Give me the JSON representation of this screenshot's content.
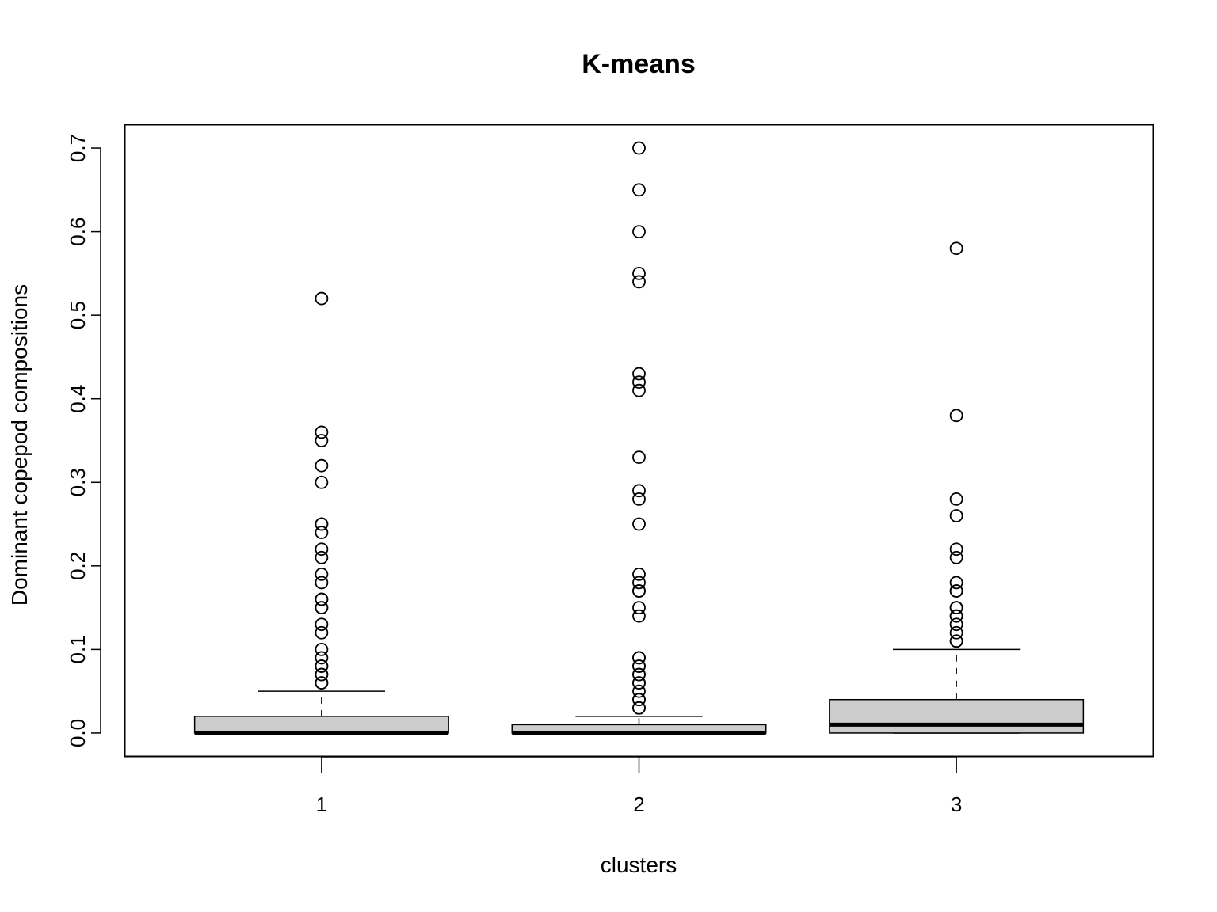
{
  "chart_data": {
    "type": "boxplot",
    "title": "K-means",
    "xlabel": "clusters",
    "ylabel": "Dominant copepod compositions",
    "categories": [
      "1",
      "2",
      "3"
    ],
    "ylim": [
      -0.028,
      0.728
    ],
    "yticks": [
      0.0,
      0.1,
      0.2,
      0.3,
      0.4,
      0.5,
      0.6,
      0.7
    ],
    "ytick_labels": [
      "0.0",
      "0.1",
      "0.2",
      "0.3",
      "0.4",
      "0.5",
      "0.6",
      "0.7"
    ],
    "box_fill": "#cccccc",
    "grid": false,
    "boxes": [
      {
        "category": "1",
        "whisker_low": 0.0,
        "q1": 0.0,
        "median": 0.0,
        "q3": 0.02,
        "whisker_high": 0.05,
        "outliers": [
          0.06,
          0.06,
          0.07,
          0.07,
          0.08,
          0.08,
          0.09,
          0.1,
          0.12,
          0.13,
          0.15,
          0.15,
          0.16,
          0.16,
          0.18,
          0.19,
          0.21,
          0.22,
          0.24,
          0.25,
          0.25,
          0.3,
          0.32,
          0.35,
          0.36,
          0.52
        ]
      },
      {
        "category": "2",
        "whisker_low": 0.0,
        "q1": 0.0,
        "median": 0.0,
        "q3": 0.01,
        "whisker_high": 0.02,
        "outliers": [
          0.03,
          0.03,
          0.04,
          0.04,
          0.05,
          0.06,
          0.06,
          0.07,
          0.07,
          0.08,
          0.08,
          0.09,
          0.09,
          0.14,
          0.15,
          0.17,
          0.17,
          0.18,
          0.19,
          0.25,
          0.28,
          0.29,
          0.33,
          0.41,
          0.42,
          0.43,
          0.54,
          0.55,
          0.6,
          0.65,
          0.7
        ]
      },
      {
        "category": "3",
        "whisker_low": 0.0,
        "q1": 0.0,
        "median": 0.01,
        "q3": 0.04,
        "whisker_high": 0.1,
        "outliers": [
          0.11,
          0.11,
          0.12,
          0.13,
          0.14,
          0.14,
          0.15,
          0.15,
          0.17,
          0.17,
          0.18,
          0.21,
          0.22,
          0.26,
          0.28,
          0.38,
          0.58
        ]
      }
    ]
  }
}
